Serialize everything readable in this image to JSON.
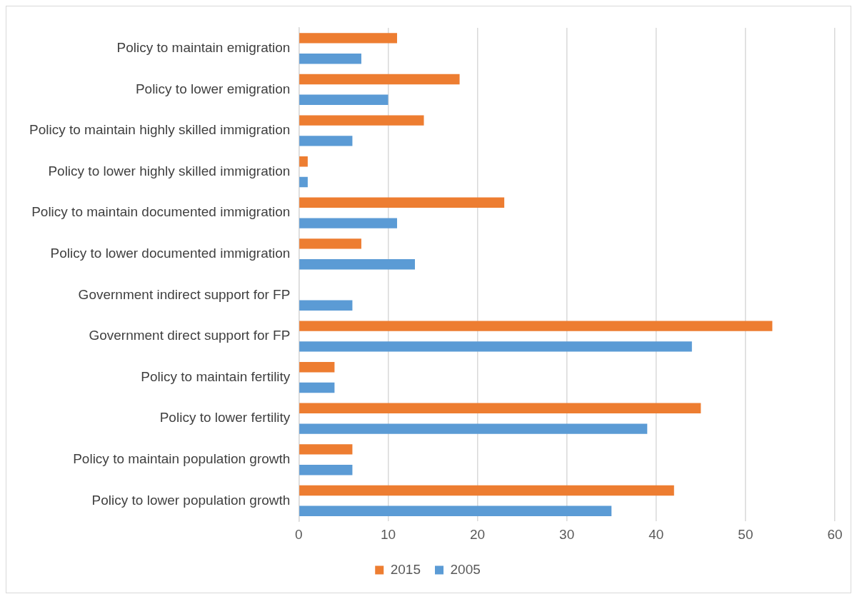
{
  "chart_data": {
    "type": "bar",
    "orientation": "horizontal",
    "categories": [
      "Policy to maintain emigration",
      "Policy to lower emigration",
      "Policy to maintain highly skilled immigration",
      "Policy to lower highly skilled immigration",
      "Policy to maintain documented immigration",
      "Policy to lower documented immigration",
      "Government indirect support for FP",
      "Government direct support for FP",
      "Policy to maintain fertility",
      "Policy to lower fertility",
      "Policy to maintain population growth",
      "Policy to lower population growth"
    ],
    "series": [
      {
        "name": "2015",
        "color": "#ed7d31",
        "values": [
          11,
          18,
          14,
          1,
          23,
          7,
          null,
          53,
          4,
          45,
          6,
          42
        ]
      },
      {
        "name": "2005",
        "color": "#5b9bd5",
        "values": [
          7,
          10,
          6,
          1,
          11,
          13,
          6,
          44,
          4,
          39,
          6,
          35
        ]
      }
    ],
    "xlim": [
      0,
      60
    ],
    "xticks": [
      0,
      10,
      20,
      30,
      40,
      50,
      60
    ],
    "grid": "x",
    "legend": "bottom"
  }
}
